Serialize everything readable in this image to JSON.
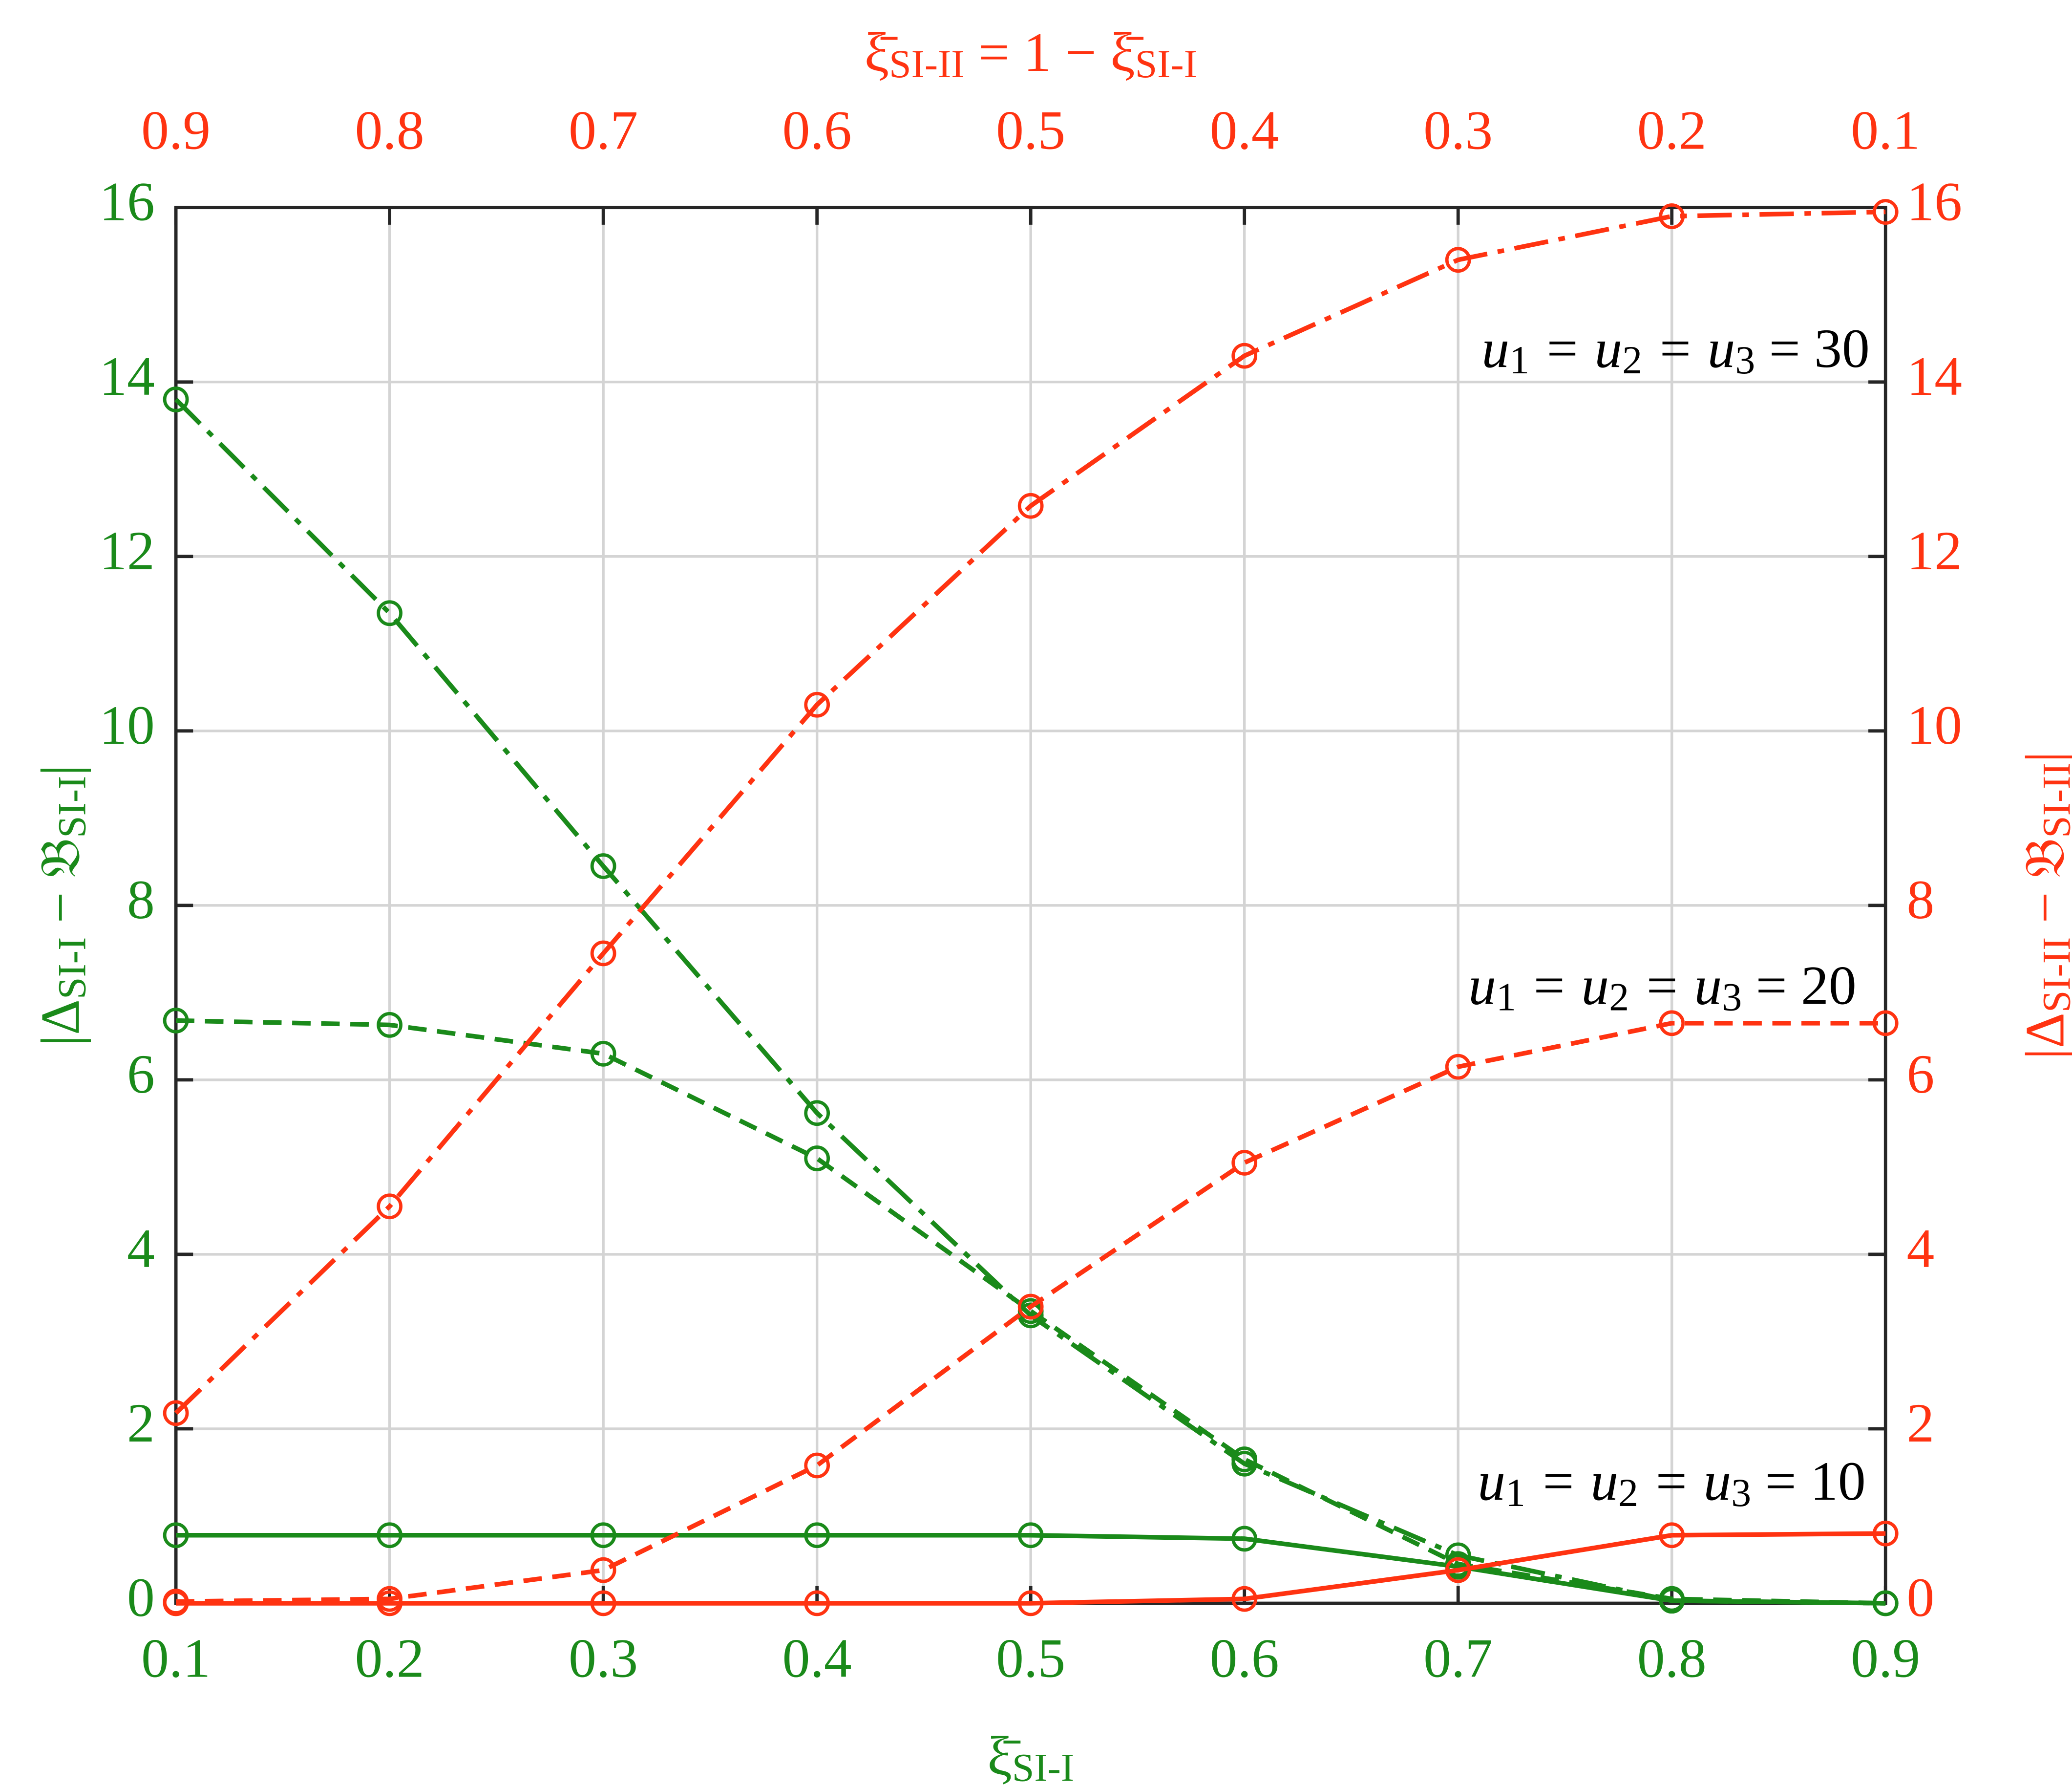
{
  "chart_data": {
    "type": "line",
    "x": [
      0.1,
      0.2,
      0.3,
      0.4,
      0.5,
      0.6,
      0.7,
      0.8,
      0.9
    ],
    "xlim": [
      0.1,
      0.9
    ],
    "xticks": [
      0.1,
      0.2,
      0.3,
      0.4,
      0.5,
      0.6,
      0.7,
      0.8,
      0.9
    ],
    "x2lim": [
      0.9,
      0.1
    ],
    "x2ticks": [
      0.9,
      0.8,
      0.7,
      0.6,
      0.5,
      0.4,
      0.3,
      0.2,
      0.1
    ],
    "ylim": [
      0,
      16
    ],
    "yticks": [
      0,
      2,
      4,
      6,
      8,
      10,
      12,
      14,
      16
    ],
    "y2lim": [
      0,
      16
    ],
    "y2ticks": [
      0,
      2,
      4,
      6,
      8,
      10,
      12,
      14,
      16
    ],
    "grid": true,
    "xlabel": [
      "ξ̄",
      "SI-I"
    ],
    "x2label": [
      "ξ̄",
      "SI-II",
      " = 1 − ξ̄",
      "SI-I"
    ],
    "ylabel": [
      "|Δ",
      "SI-I",
      " − 𝔅",
      "SI-I",
      "|"
    ],
    "y2label": [
      "|Δ",
      "SI-II",
      " − 𝔅",
      "SI-II",
      "|"
    ],
    "left_color": "#1a8a1a",
    "right_color": "#ff3311",
    "annotations": [
      [
        "u",
        "1",
        " = u",
        "2",
        " = u",
        "3",
        " = 30"
      ],
      [
        "u",
        "1",
        " = u",
        "2",
        " = u",
        "3",
        " = 20"
      ],
      [
        "u",
        "1",
        " = u",
        "2",
        " = u",
        "3",
        " = 10"
      ]
    ],
    "series": [
      {
        "color": "#1a8a1a",
        "dash": "dashdot",
        "values": [
          13.8,
          11.35,
          8.45,
          5.62,
          3.3,
          1.6,
          0.55,
          0.03,
          0.0
        ]
      },
      {
        "color": "#1a8a1a",
        "dash": "dashed",
        "values": [
          6.68,
          6.63,
          6.3,
          5.1,
          3.35,
          1.65,
          0.45,
          0.05,
          0.0
        ]
      },
      {
        "color": "#1a8a1a",
        "dash": "solid",
        "values": [
          0.78,
          0.78,
          0.78,
          0.78,
          0.78,
          0.74,
          0.42,
          0.03,
          0.0
        ]
      },
      {
        "color": "#ff3311",
        "dash": "dashdot",
        "axis": "y2",
        "values": [
          2.18,
          4.55,
          7.45,
          10.3,
          12.58,
          14.3,
          15.4,
          15.9,
          15.95
        ]
      },
      {
        "color": "#ff3311",
        "dash": "dashed",
        "axis": "y2",
        "values": [
          0.02,
          0.05,
          0.38,
          1.58,
          3.4,
          5.05,
          6.15,
          6.65,
          6.65
        ]
      },
      {
        "color": "#ff3311",
        "dash": "solid",
        "axis": "y2",
        "values": [
          0.0,
          0.0,
          0.0,
          0.0,
          0.0,
          0.05,
          0.38,
          0.78,
          0.8
        ]
      }
    ]
  }
}
